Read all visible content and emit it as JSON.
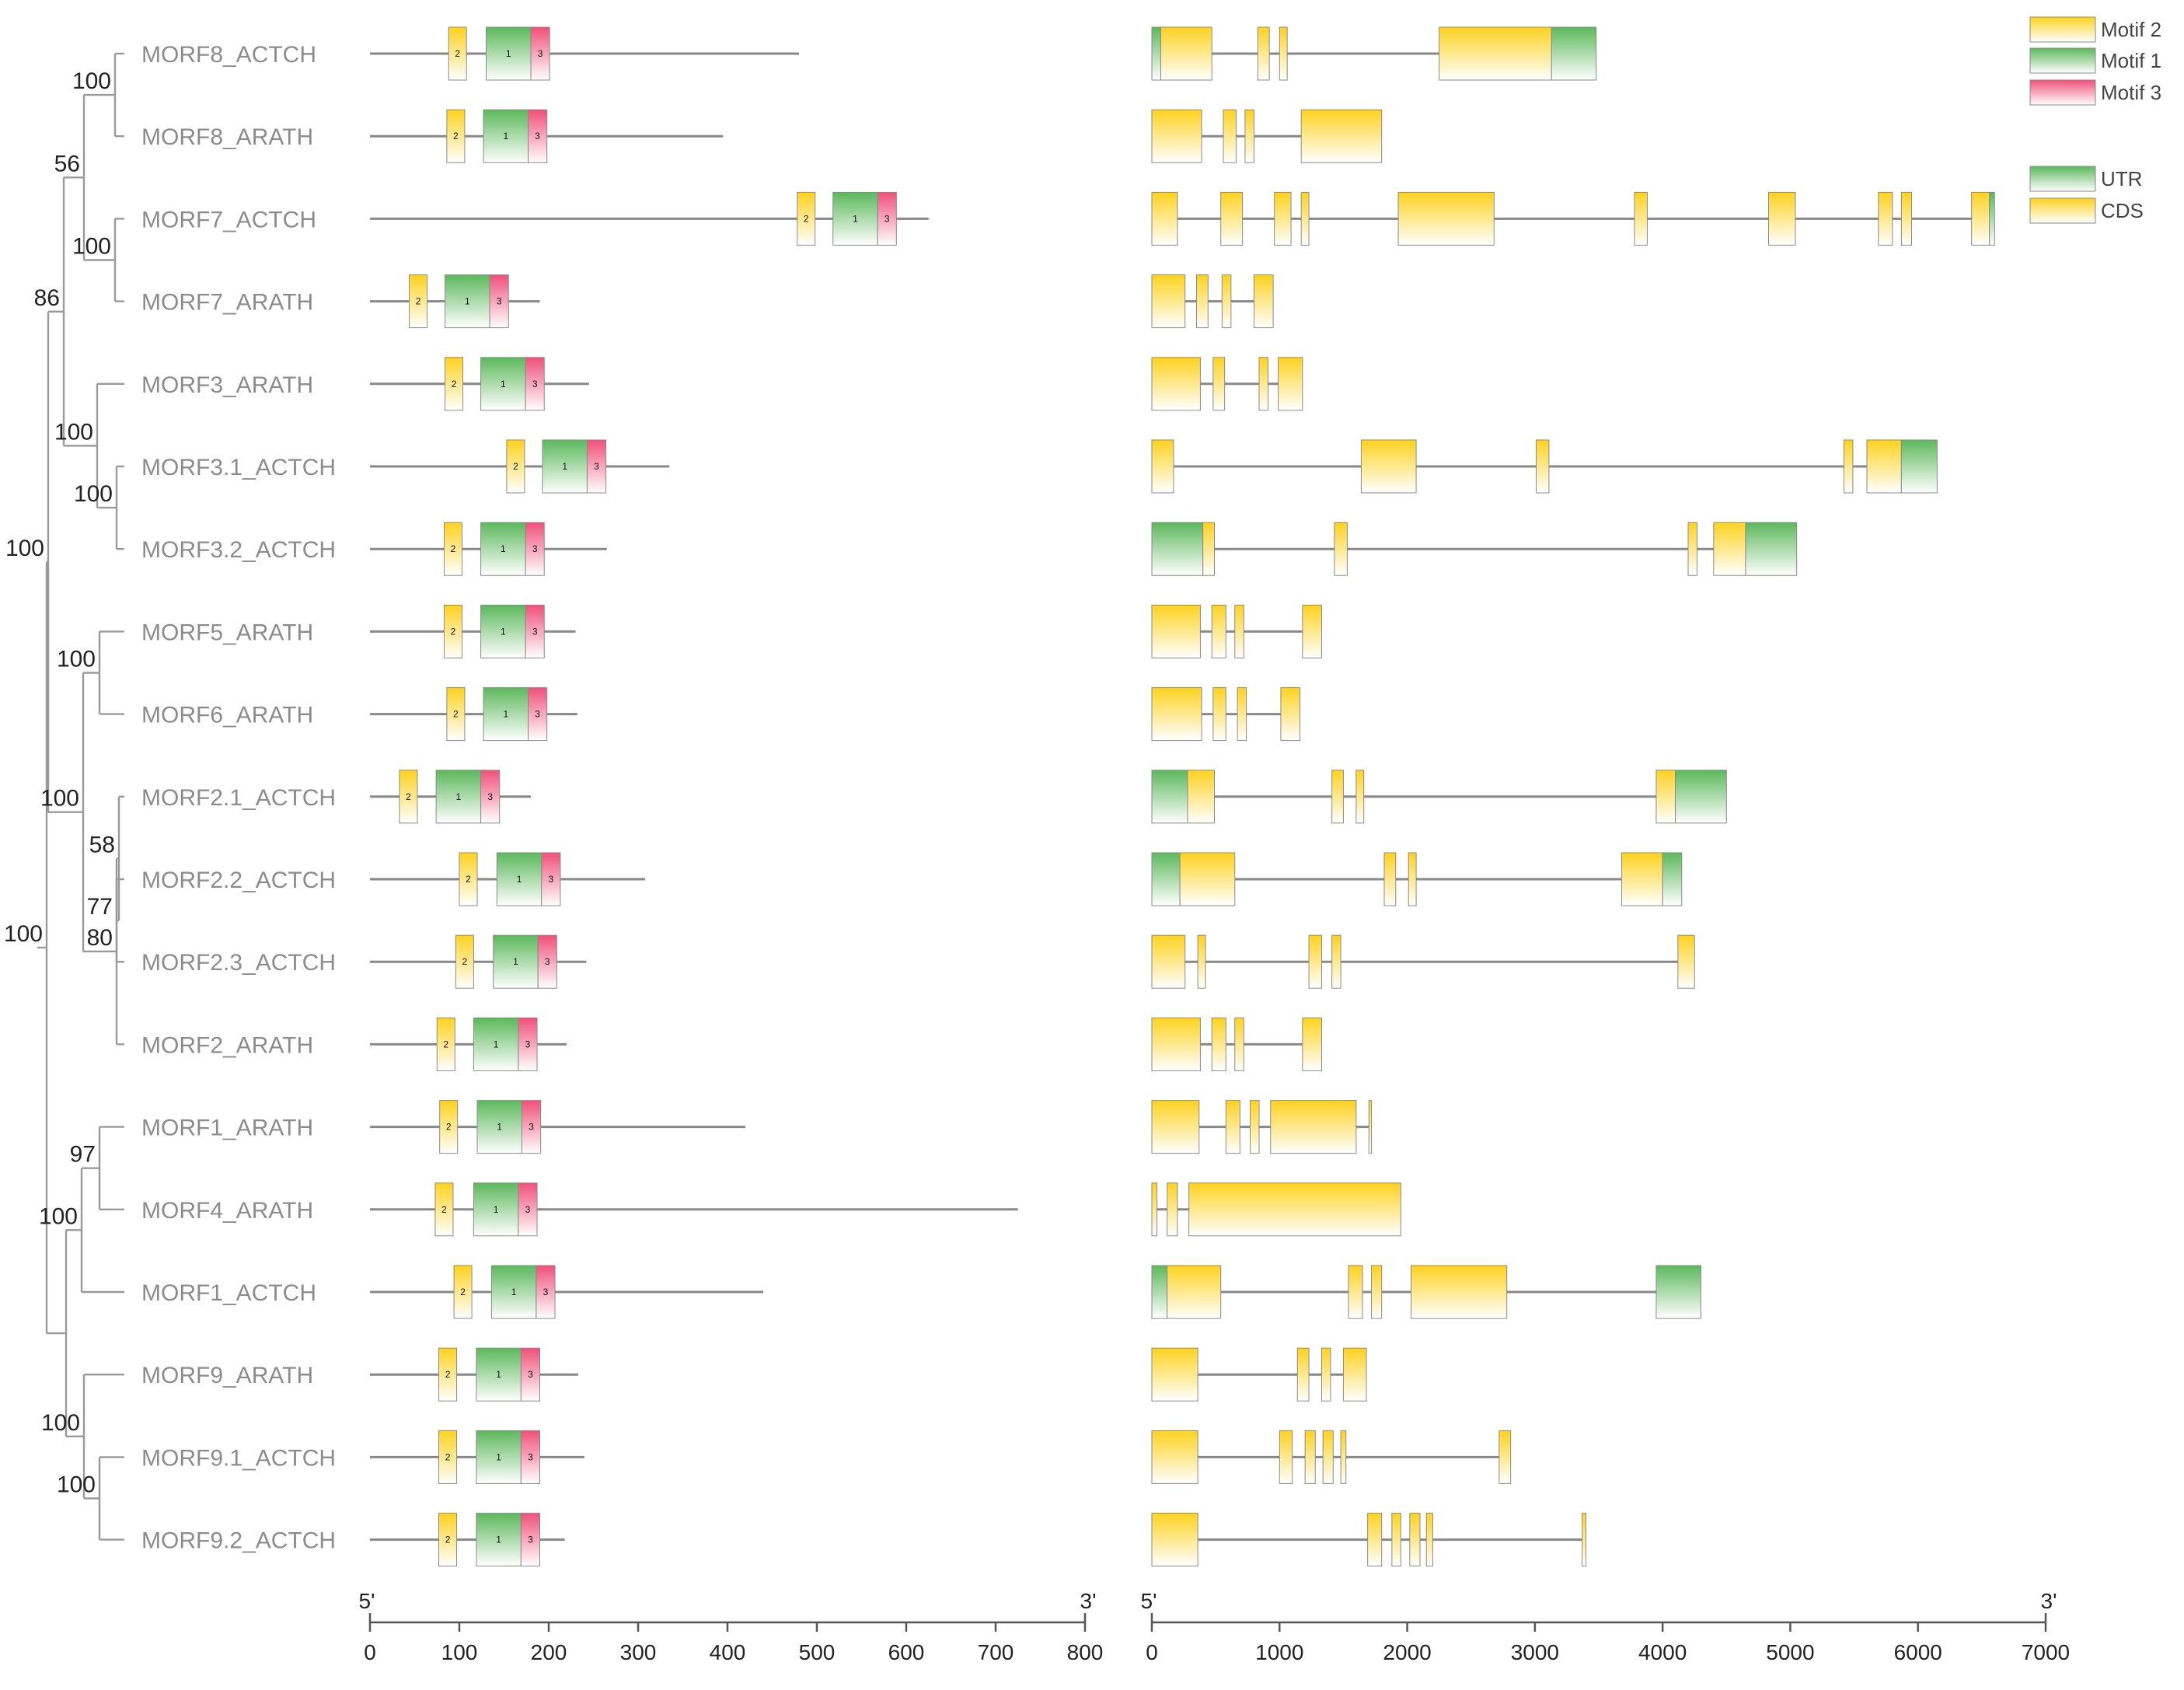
{
  "chart_data": {
    "type": "gene_structure_with_phylogeny",
    "legend": [
      {
        "key": "motif2",
        "label": "Motif 2"
      },
      {
        "key": "motif1",
        "label": "Motif 1"
      },
      {
        "key": "motif3",
        "label": "Motif 3"
      },
      {
        "key": "utr",
        "label": "UTR"
      },
      {
        "key": "cds",
        "label": "CDS"
      }
    ],
    "colors": {
      "motif1": "#5cb85c",
      "motif2": "#ffd21f",
      "motif3": "#f0507a",
      "utr": "#5cb85c",
      "cds": "#ffd21f",
      "line": "#888888",
      "tree": "#9a9a9a"
    },
    "protein_axis": {
      "min": 0,
      "max": 800,
      "ticks": [
        0,
        100,
        200,
        300,
        400,
        500,
        600,
        700,
        800
      ],
      "left_label": "5'",
      "right_label": "3'"
    },
    "gene_axis": {
      "min": 0,
      "max": 7000,
      "ticks": [
        0,
        1000,
        2000,
        3000,
        4000,
        5000,
        6000,
        7000
      ],
      "left_label": "5'",
      "right_label": "3'"
    },
    "genes": [
      {
        "name": "MORF8_ACTCH",
        "protein_length": 480,
        "motifs": [
          {
            "m": 2,
            "s": 88,
            "e": 108
          },
          {
            "m": 1,
            "s": 130,
            "e": 180
          },
          {
            "m": 3,
            "s": 180,
            "e": 201
          }
        ],
        "structure_length": 3480,
        "exons": [
          {
            "t": "utr",
            "s": 0,
            "e": 70
          },
          {
            "t": "cds",
            "s": 70,
            "e": 470
          },
          {
            "t": "cds",
            "s": 830,
            "e": 920
          },
          {
            "t": "cds",
            "s": 1000,
            "e": 1060
          },
          {
            "t": "cds",
            "s": 2250,
            "e": 3130
          },
          {
            "t": "utr",
            "s": 3130,
            "e": 3480
          }
        ]
      },
      {
        "name": "MORF8_ARATH",
        "protein_length": 395,
        "motifs": [
          {
            "m": 2,
            "s": 86,
            "e": 106
          },
          {
            "m": 1,
            "s": 127,
            "e": 177
          },
          {
            "m": 3,
            "s": 177,
            "e": 198
          }
        ],
        "structure_length": 1800,
        "exons": [
          {
            "t": "cds",
            "s": 0,
            "e": 390
          },
          {
            "t": "cds",
            "s": 560,
            "e": 660
          },
          {
            "t": "cds",
            "s": 730,
            "e": 800
          },
          {
            "t": "cds",
            "s": 1170,
            "e": 1800
          }
        ]
      },
      {
        "name": "MORF7_ACTCH",
        "protein_length": 625,
        "motifs": [
          {
            "m": 2,
            "s": 478,
            "e": 498
          },
          {
            "m": 1,
            "s": 518,
            "e": 568
          },
          {
            "m": 3,
            "s": 568,
            "e": 589
          }
        ],
        "structure_length": 6600,
        "exons": [
          {
            "t": "cds",
            "s": 0,
            "e": 200
          },
          {
            "t": "cds",
            "s": 540,
            "e": 710
          },
          {
            "t": "cds",
            "s": 960,
            "e": 1090
          },
          {
            "t": "cds",
            "s": 1170,
            "e": 1230
          },
          {
            "t": "cds",
            "s": 1930,
            "e": 2680
          },
          {
            "t": "cds",
            "s": 3780,
            "e": 3880
          },
          {
            "t": "cds",
            "s": 4830,
            "e": 5040
          },
          {
            "t": "cds",
            "s": 5690,
            "e": 5800
          },
          {
            "t": "cds",
            "s": 5870,
            "e": 5950
          },
          {
            "t": "cds",
            "s": 6420,
            "e": 6560
          },
          {
            "t": "utr",
            "s": 6560,
            "e": 6600
          }
        ]
      },
      {
        "name": "MORF7_ARATH",
        "protein_length": 190,
        "motifs": [
          {
            "m": 2,
            "s": 44,
            "e": 64
          },
          {
            "m": 1,
            "s": 84,
            "e": 134
          },
          {
            "m": 3,
            "s": 134,
            "e": 155
          }
        ],
        "structure_length": 950,
        "exons": [
          {
            "t": "cds",
            "s": 0,
            "e": 260
          },
          {
            "t": "cds",
            "s": 350,
            "e": 440
          },
          {
            "t": "cds",
            "s": 550,
            "e": 620
          },
          {
            "t": "cds",
            "s": 800,
            "e": 950
          }
        ]
      },
      {
        "name": "MORF3_ARATH",
        "protein_length": 245,
        "motifs": [
          {
            "m": 2,
            "s": 84,
            "e": 104
          },
          {
            "m": 1,
            "s": 124,
            "e": 174
          },
          {
            "m": 3,
            "s": 174,
            "e": 195
          }
        ],
        "structure_length": 1180,
        "exons": [
          {
            "t": "cds",
            "s": 0,
            "e": 380
          },
          {
            "t": "cds",
            "s": 480,
            "e": 570
          },
          {
            "t": "cds",
            "s": 840,
            "e": 910
          },
          {
            "t": "cds",
            "s": 990,
            "e": 1180
          }
        ]
      },
      {
        "name": "MORF3.1_ACTCH",
        "protein_length": 335,
        "motifs": [
          {
            "m": 2,
            "s": 153,
            "e": 173
          },
          {
            "m": 1,
            "s": 193,
            "e": 243
          },
          {
            "m": 3,
            "s": 243,
            "e": 264
          }
        ],
        "structure_length": 6150,
        "exons": [
          {
            "t": "cds",
            "s": 0,
            "e": 170
          },
          {
            "t": "cds",
            "s": 1640,
            "e": 2070
          },
          {
            "t": "cds",
            "s": 3010,
            "e": 3110
          },
          {
            "t": "cds",
            "s": 5420,
            "e": 5490
          },
          {
            "t": "cds",
            "s": 5600,
            "e": 5870
          },
          {
            "t": "utr",
            "s": 5870,
            "e": 6150
          }
        ]
      },
      {
        "name": "MORF3.2_ACTCH",
        "protein_length": 265,
        "motifs": [
          {
            "m": 2,
            "s": 83,
            "e": 103
          },
          {
            "m": 1,
            "s": 124,
            "e": 174
          },
          {
            "m": 3,
            "s": 174,
            "e": 195
          }
        ],
        "structure_length": 5050,
        "exons": [
          {
            "t": "utr",
            "s": 0,
            "e": 400
          },
          {
            "t": "cds",
            "s": 400,
            "e": 490
          },
          {
            "t": "cds",
            "s": 1430,
            "e": 1530
          },
          {
            "t": "cds",
            "s": 4200,
            "e": 4270
          },
          {
            "t": "cds",
            "s": 4400,
            "e": 4650
          },
          {
            "t": "utr",
            "s": 4650,
            "e": 5050
          }
        ]
      },
      {
        "name": "MORF5_ARATH",
        "protein_length": 230,
        "motifs": [
          {
            "m": 2,
            "s": 83,
            "e": 103
          },
          {
            "m": 1,
            "s": 124,
            "e": 174
          },
          {
            "m": 3,
            "s": 174,
            "e": 195
          }
        ],
        "structure_length": 1330,
        "exons": [
          {
            "t": "cds",
            "s": 0,
            "e": 380
          },
          {
            "t": "cds",
            "s": 470,
            "e": 580
          },
          {
            "t": "cds",
            "s": 650,
            "e": 720
          },
          {
            "t": "cds",
            "s": 1180,
            "e": 1330
          }
        ]
      },
      {
        "name": "MORF6_ARATH",
        "protein_length": 232,
        "motifs": [
          {
            "m": 2,
            "s": 86,
            "e": 106
          },
          {
            "m": 1,
            "s": 127,
            "e": 177
          },
          {
            "m": 3,
            "s": 177,
            "e": 198
          }
        ],
        "structure_length": 1160,
        "exons": [
          {
            "t": "cds",
            "s": 0,
            "e": 390
          },
          {
            "t": "cds",
            "s": 480,
            "e": 580
          },
          {
            "t": "cds",
            "s": 670,
            "e": 740
          },
          {
            "t": "cds",
            "s": 1010,
            "e": 1160
          }
        ]
      },
      {
        "name": "MORF2.1_ACTCH",
        "protein_length": 180,
        "motifs": [
          {
            "m": 2,
            "s": 33,
            "e": 53
          },
          {
            "m": 1,
            "s": 74,
            "e": 124
          },
          {
            "m": 3,
            "s": 124,
            "e": 145
          }
        ],
        "structure_length": 4500,
        "exons": [
          {
            "t": "utr",
            "s": 0,
            "e": 280
          },
          {
            "t": "cds",
            "s": 280,
            "e": 490
          },
          {
            "t": "cds",
            "s": 1410,
            "e": 1500
          },
          {
            "t": "cds",
            "s": 1600,
            "e": 1660
          },
          {
            "t": "cds",
            "s": 3950,
            "e": 4100
          },
          {
            "t": "utr",
            "s": 4100,
            "e": 4500
          }
        ]
      },
      {
        "name": "MORF2.2_ACTCH",
        "protein_length": 308,
        "motifs": [
          {
            "m": 2,
            "s": 100,
            "e": 120
          },
          {
            "m": 1,
            "s": 142,
            "e": 192
          },
          {
            "m": 3,
            "s": 192,
            "e": 213
          }
        ],
        "structure_length": 4150,
        "exons": [
          {
            "t": "utr",
            "s": 0,
            "e": 220
          },
          {
            "t": "cds",
            "s": 220,
            "e": 650
          },
          {
            "t": "cds",
            "s": 1820,
            "e": 1910
          },
          {
            "t": "cds",
            "s": 2010,
            "e": 2070
          },
          {
            "t": "cds",
            "s": 3680,
            "e": 4000
          },
          {
            "t": "utr",
            "s": 4000,
            "e": 4150
          }
        ]
      },
      {
        "name": "MORF2.3_ACTCH",
        "protein_length": 242,
        "motifs": [
          {
            "m": 2,
            "s": 96,
            "e": 116
          },
          {
            "m": 1,
            "s": 138,
            "e": 188
          },
          {
            "m": 3,
            "s": 188,
            "e": 209
          }
        ],
        "structure_length": 4250,
        "exons": [
          {
            "t": "cds",
            "s": 0,
            "e": 260
          },
          {
            "t": "cds",
            "s": 360,
            "e": 420
          },
          {
            "t": "cds",
            "s": 1230,
            "e": 1330
          },
          {
            "t": "cds",
            "s": 1410,
            "e": 1480
          },
          {
            "t": "cds",
            "s": 4120,
            "e": 4250
          }
        ]
      },
      {
        "name": "MORF2_ARATH",
        "protein_length": 220,
        "motifs": [
          {
            "m": 2,
            "s": 75,
            "e": 95
          },
          {
            "m": 1,
            "s": 116,
            "e": 166
          },
          {
            "m": 3,
            "s": 166,
            "e": 187
          }
        ],
        "structure_length": 1330,
        "exons": [
          {
            "t": "cds",
            "s": 0,
            "e": 380
          },
          {
            "t": "cds",
            "s": 470,
            "e": 580
          },
          {
            "t": "cds",
            "s": 650,
            "e": 720
          },
          {
            "t": "cds",
            "s": 1180,
            "e": 1330
          }
        ]
      },
      {
        "name": "MORF1_ARATH",
        "protein_length": 420,
        "motifs": [
          {
            "m": 2,
            "s": 78,
            "e": 98
          },
          {
            "m": 1,
            "s": 120,
            "e": 170
          },
          {
            "m": 3,
            "s": 170,
            "e": 191
          }
        ],
        "structure_length": 1720,
        "exons": [
          {
            "t": "cds",
            "s": 0,
            "e": 370
          },
          {
            "t": "cds",
            "s": 580,
            "e": 690
          },
          {
            "t": "cds",
            "s": 770,
            "e": 840
          },
          {
            "t": "cds",
            "s": 930,
            "e": 1600
          },
          {
            "t": "cds",
            "s": 1700,
            "e": 1720
          }
        ]
      },
      {
        "name": "MORF4_ARATH",
        "protein_length": 725,
        "motifs": [
          {
            "m": 2,
            "s": 73,
            "e": 93
          },
          {
            "m": 1,
            "s": 116,
            "e": 166
          },
          {
            "m": 3,
            "s": 166,
            "e": 187
          }
        ],
        "structure_length": 1950,
        "exons": [
          {
            "t": "cds",
            "s": 0,
            "e": 40
          },
          {
            "t": "cds",
            "s": 120,
            "e": 200
          },
          {
            "t": "cds",
            "s": 290,
            "e": 1950
          }
        ]
      },
      {
        "name": "MORF1_ACTCH",
        "protein_length": 440,
        "motifs": [
          {
            "m": 2,
            "s": 94,
            "e": 114
          },
          {
            "m": 1,
            "s": 136,
            "e": 186
          },
          {
            "m": 3,
            "s": 186,
            "e": 207
          }
        ],
        "structure_length": 4300,
        "exons": [
          {
            "t": "utr",
            "s": 0,
            "e": 120
          },
          {
            "t": "cds",
            "s": 120,
            "e": 540
          },
          {
            "t": "cds",
            "s": 1540,
            "e": 1650
          },
          {
            "t": "cds",
            "s": 1720,
            "e": 1800
          },
          {
            "t": "cds",
            "s": 2030,
            "e": 2780
          },
          {
            "t": "utr",
            "s": 3950,
            "e": 4300
          }
        ]
      },
      {
        "name": "MORF9_ARATH",
        "protein_length": 233,
        "motifs": [
          {
            "m": 2,
            "s": 77,
            "e": 97
          },
          {
            "m": 1,
            "s": 119,
            "e": 169
          },
          {
            "m": 3,
            "s": 169,
            "e": 190
          }
        ],
        "structure_length": 1680,
        "exons": [
          {
            "t": "cds",
            "s": 0,
            "e": 360
          },
          {
            "t": "cds",
            "s": 1140,
            "e": 1230
          },
          {
            "t": "cds",
            "s": 1330,
            "e": 1400
          },
          {
            "t": "cds",
            "s": 1500,
            "e": 1680
          }
        ]
      },
      {
        "name": "MORF9.1_ACTCH",
        "protein_length": 240,
        "motifs": [
          {
            "m": 2,
            "s": 77,
            "e": 97
          },
          {
            "m": 1,
            "s": 119,
            "e": 169
          },
          {
            "m": 3,
            "s": 169,
            "e": 190
          }
        ],
        "structure_length": 2810,
        "exons": [
          {
            "t": "cds",
            "s": 0,
            "e": 360
          },
          {
            "t": "cds",
            "s": 1000,
            "e": 1100
          },
          {
            "t": "cds",
            "s": 1200,
            "e": 1280
          },
          {
            "t": "cds",
            "s": 1340,
            "e": 1420
          },
          {
            "t": "cds",
            "s": 1480,
            "e": 1520
          },
          {
            "t": "cds",
            "s": 2720,
            "e": 2810
          }
        ]
      },
      {
        "name": "MORF9.2_ACTCH",
        "protein_length": 218,
        "motifs": [
          {
            "m": 2,
            "s": 77,
            "e": 97
          },
          {
            "m": 1,
            "s": 119,
            "e": 169
          },
          {
            "m": 3,
            "s": 169,
            "e": 190
          }
        ],
        "structure_length": 3400,
        "exons": [
          {
            "t": "cds",
            "s": 0,
            "e": 360
          },
          {
            "t": "cds",
            "s": 1690,
            "e": 1800
          },
          {
            "t": "cds",
            "s": 1880,
            "e": 1950
          },
          {
            "t": "cds",
            "s": 2020,
            "e": 2100
          },
          {
            "t": "cds",
            "s": 2150,
            "e": 2200
          },
          {
            "t": "cds",
            "s": 3370,
            "e": 3400
          }
        ]
      }
    ],
    "bootstrap_values": [
      "100",
      "56",
      "100",
      "86",
      "100",
      "100",
      "100",
      "100",
      "100",
      "58",
      "80",
      "77",
      "97",
      "100",
      "100",
      "100",
      "100"
    ]
  }
}
